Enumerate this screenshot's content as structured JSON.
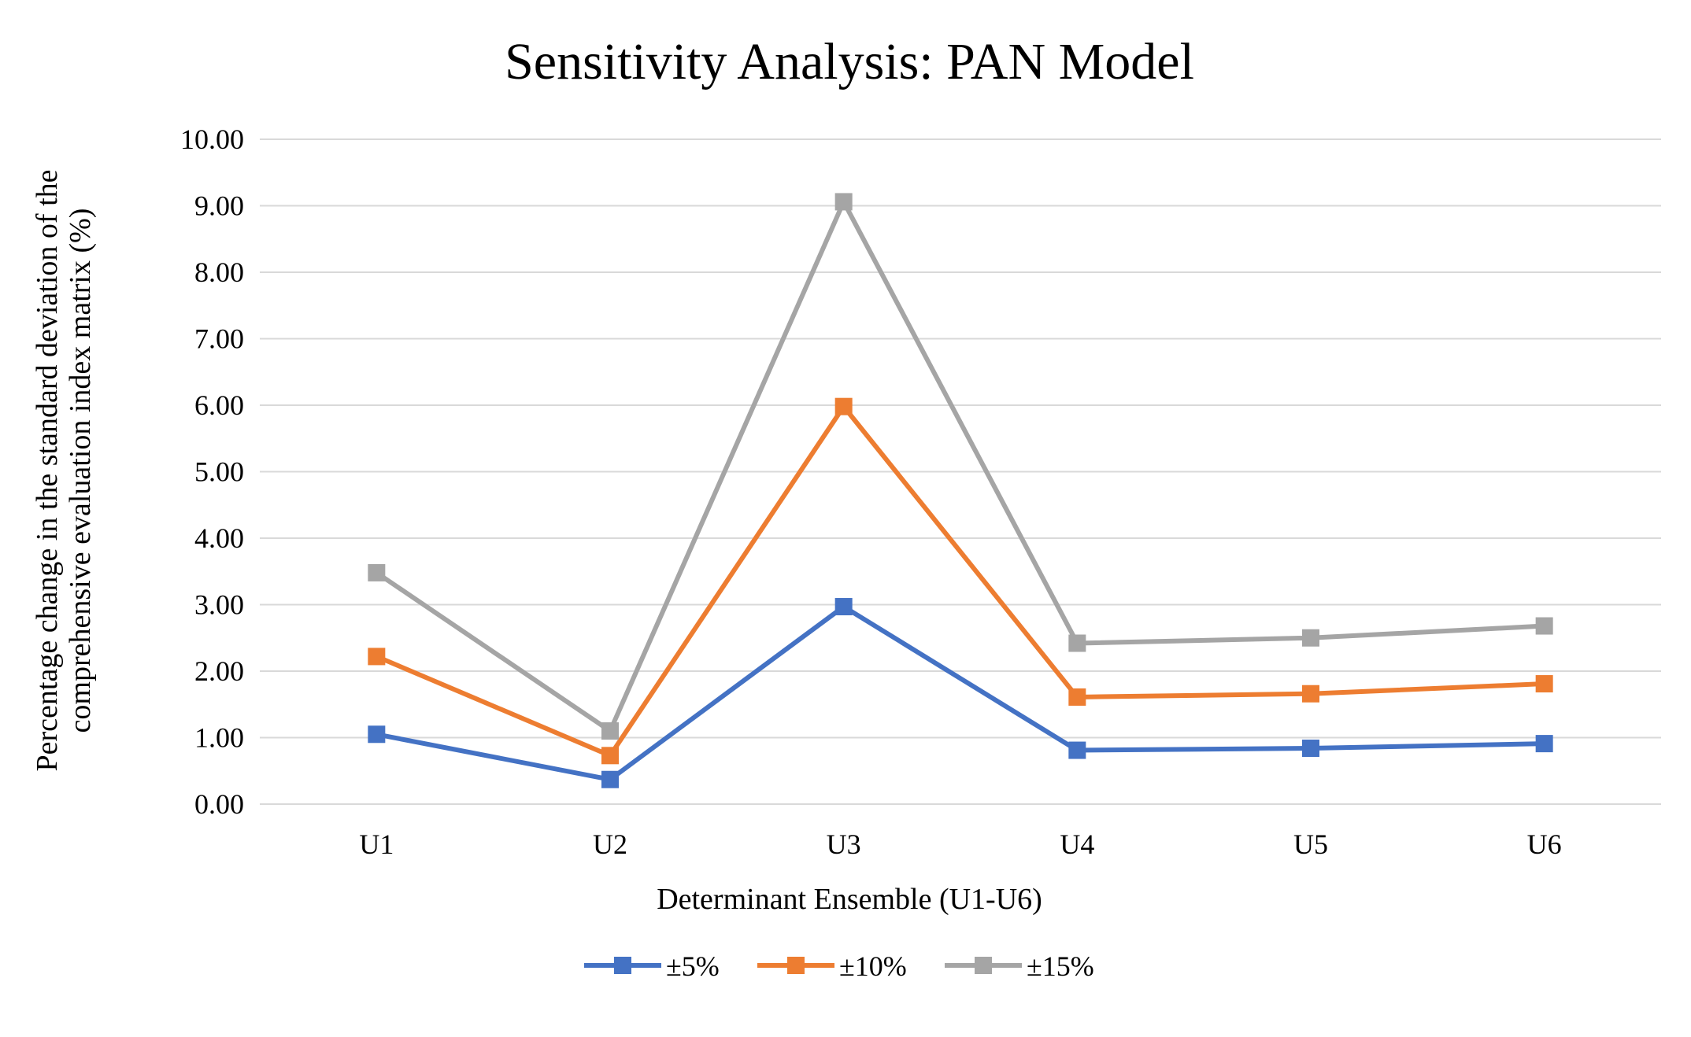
{
  "chart_data": {
    "type": "line",
    "title": "Sensitivity Analysis: PAN Model",
    "xlabel": "Determinant Ensemble (U1-U6)",
    "ylabel_lines": [
      "Percentage change in the standard deviation of the",
      "comprehensive evaluation index matrix (%)"
    ],
    "categories": [
      "U1",
      "U2",
      "U3",
      "U4",
      "U5",
      "U6"
    ],
    "ylim": [
      0,
      10
    ],
    "yticks": [
      "0.00",
      "1.00",
      "2.00",
      "3.00",
      "4.00",
      "5.00",
      "6.00",
      "7.00",
      "8.00",
      "9.00",
      "10.00"
    ],
    "grid": true,
    "legend_position": "bottom",
    "series": [
      {
        "name": "±5%",
        "color": "#4472C4",
        "values": [
          1.05,
          0.37,
          2.97,
          0.81,
          0.84,
          0.91
        ]
      },
      {
        "name": "±10%",
        "color": "#ED7D31",
        "values": [
          2.22,
          0.73,
          5.98,
          1.61,
          1.66,
          1.81
        ]
      },
      {
        "name": "±15%",
        "color": "#A5A5A5",
        "values": [
          3.48,
          1.1,
          9.06,
          2.42,
          2.5,
          2.68
        ]
      }
    ]
  }
}
